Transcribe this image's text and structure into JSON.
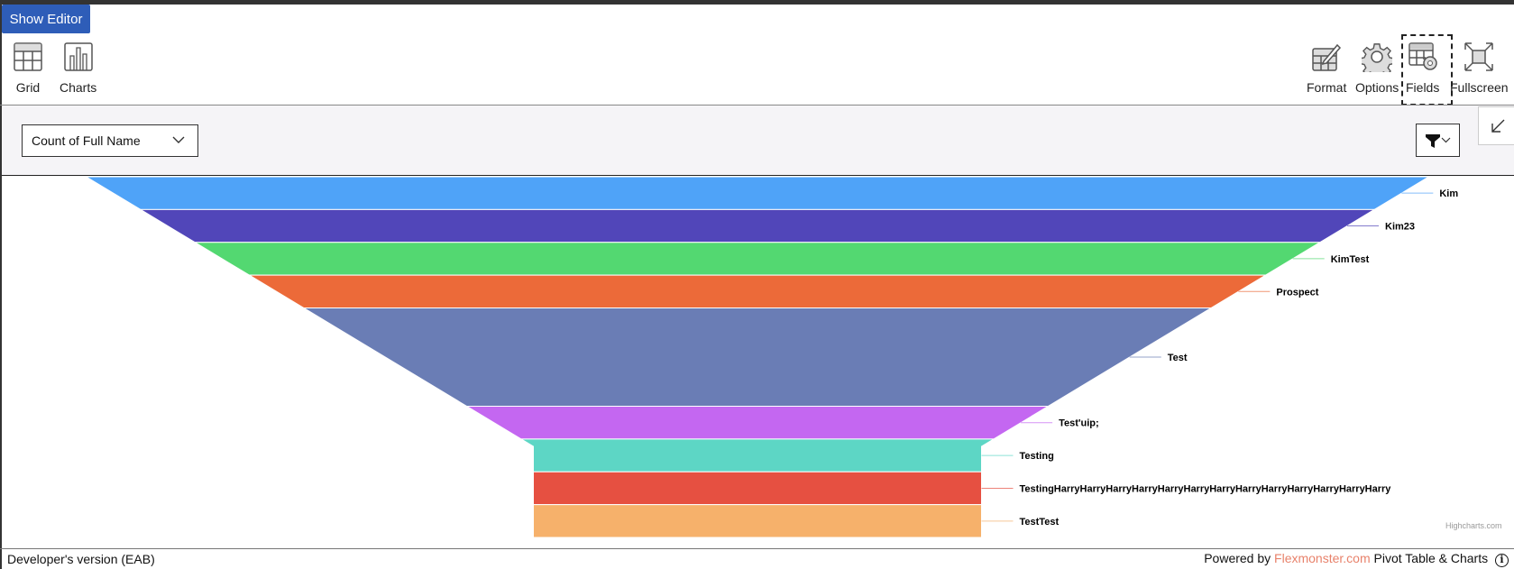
{
  "toolbar": {
    "show_editor": "Show Editor",
    "left_tools": [
      {
        "label": "Grid",
        "icon": "grid-icon"
      },
      {
        "label": "Charts",
        "icon": "charts-icon"
      }
    ],
    "right_tools": [
      {
        "label": "Format",
        "icon": "format-icon"
      },
      {
        "label": "Options",
        "icon": "options-gear-icon"
      },
      {
        "label": "Fields",
        "icon": "fields-icon"
      },
      {
        "label": "Fullscreen",
        "icon": "fullscreen-icon"
      }
    ]
  },
  "controls": {
    "measure_select": "Count of Full Name"
  },
  "chart_data": {
    "type": "funnel",
    "categories": [
      "Kim",
      "Kim23",
      "KimTest",
      "Prospect",
      "Test",
      "Test'uip;",
      "Testing",
      "TestingHarryHarryHarryHarryHarryHarryHarryHarryHarryHarryHarryHarryHarry",
      "TestTest"
    ],
    "values": [
      1,
      1,
      1,
      1,
      3,
      1,
      1,
      1,
      1
    ],
    "colors": [
      "#4fa3f8",
      "#5146b9",
      "#53d871",
      "#ec6a39",
      "#6a7db5",
      "#c467f1",
      "#5dd6c5",
      "#e65041",
      "#f6b16b"
    ],
    "credits": "Highcharts.com"
  },
  "footer": {
    "left": "Developer's version (EAB)",
    "powered_by": "Powered by",
    "brand": "Flexmonster.com",
    "product": "Pivot Table & Charts",
    "info_glyph": "i"
  }
}
